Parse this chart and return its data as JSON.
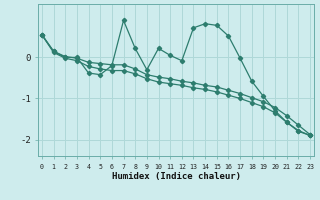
{
  "xlabel": "Humidex (Indice chaleur)",
  "background_color": "#ceeced",
  "grid_color": "#afd8d8",
  "line_color": "#2d7d6e",
  "x_values": [
    0,
    1,
    2,
    3,
    4,
    5,
    6,
    7,
    8,
    9,
    10,
    11,
    12,
    13,
    14,
    15,
    16,
    17,
    18,
    19,
    20,
    21,
    22,
    23
  ],
  "series1": [
    0.55,
    0.15,
    0.0,
    0.0,
    -0.38,
    -0.42,
    -0.2,
    0.9,
    0.22,
    -0.3,
    0.22,
    0.05,
    -0.08,
    0.72,
    0.82,
    0.78,
    0.52,
    -0.02,
    -0.58,
    -0.95,
    -1.3,
    -1.58,
    -1.78,
    -1.9
  ],
  "series2": [
    0.55,
    0.15,
    0.02,
    -0.02,
    -0.12,
    -0.15,
    -0.18,
    -0.18,
    -0.28,
    -0.42,
    -0.48,
    -0.52,
    -0.58,
    -0.62,
    -0.68,
    -0.72,
    -0.8,
    -0.88,
    -0.98,
    -1.08,
    -1.22,
    -1.42,
    -1.65,
    -1.88
  ],
  "series3": [
    0.55,
    0.12,
    -0.02,
    -0.08,
    -0.22,
    -0.28,
    -0.32,
    -0.32,
    -0.4,
    -0.52,
    -0.6,
    -0.64,
    -0.68,
    -0.74,
    -0.78,
    -0.84,
    -0.92,
    -1.0,
    -1.1,
    -1.2,
    -1.35,
    -1.58,
    -1.8,
    -1.9
  ],
  "ylim": [
    -2.4,
    1.3
  ],
  "yticks": [
    0,
    -1,
    -2
  ],
  "xlim": [
    -0.3,
    23.3
  ]
}
